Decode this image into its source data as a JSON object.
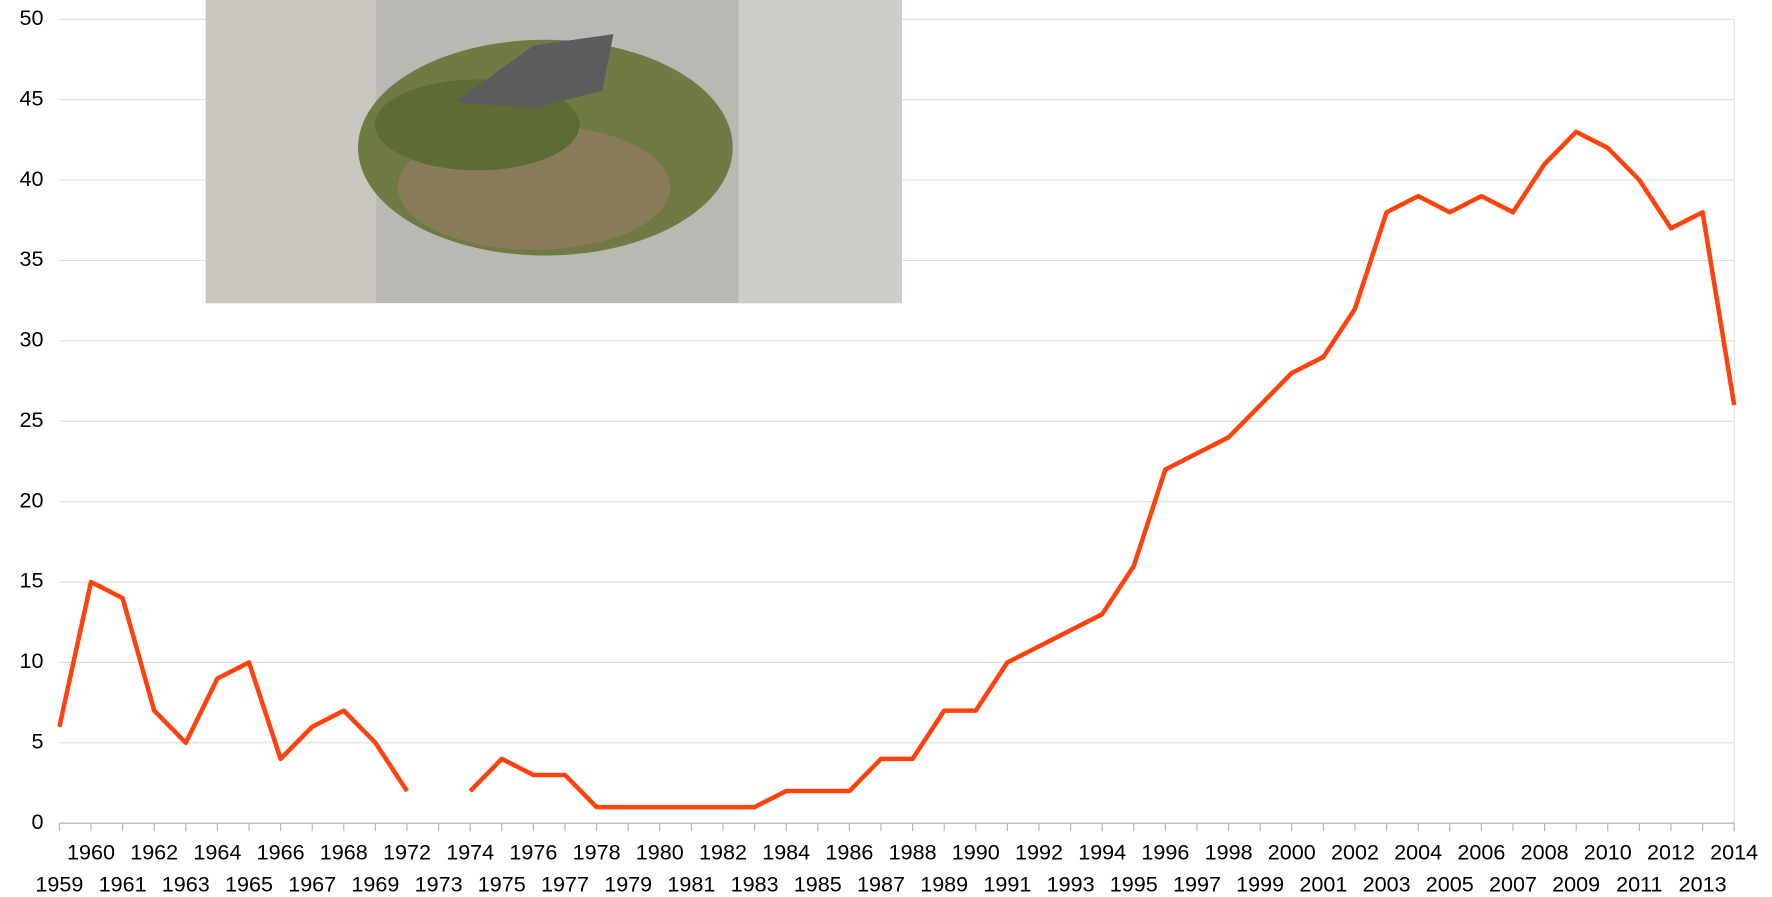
{
  "chart_data": {
    "type": "line",
    "categories": [
      "1959",
      "1960",
      "1961",
      "1962",
      "1963",
      "1964",
      "1965",
      "1966",
      "1967",
      "1968",
      "1969",
      "1972",
      "1973",
      "1974",
      "1975",
      "1976",
      "1977",
      "1978",
      "1979",
      "1980",
      "1981",
      "1982",
      "1983",
      "1984",
      "1985",
      "1986",
      "1987",
      "1988",
      "1989",
      "1990",
      "1991",
      "1992",
      "1993",
      "1994",
      "1995",
      "1996",
      "1997",
      "1998",
      "1999",
      "2000",
      "2001",
      "2002",
      "2003",
      "2004",
      "2005",
      "2006",
      "2007",
      "2008",
      "2009",
      "2010",
      "2011",
      "2012",
      "2013",
      "2014"
    ],
    "series": [
      {
        "color": "#ff420e",
        "values": [
          6,
          15,
          14,
          7,
          5,
          9,
          10,
          4,
          6,
          7,
          5,
          2,
          null,
          2,
          4,
          3,
          3,
          1,
          1,
          1,
          1,
          1,
          1,
          2,
          2,
          2,
          4,
          4,
          7,
          7,
          10,
          11,
          12,
          13,
          16,
          22,
          23,
          24,
          26,
          28,
          29,
          32,
          38,
          39,
          38,
          39,
          38,
          41,
          43,
          42,
          40,
          37,
          38,
          26
        ]
      }
    ],
    "ylim": [
      0,
      50
    ],
    "yticks": [
      0,
      5,
      10,
      15,
      20,
      25,
      30,
      35,
      40,
      45,
      50
    ],
    "grid": true
  }
}
